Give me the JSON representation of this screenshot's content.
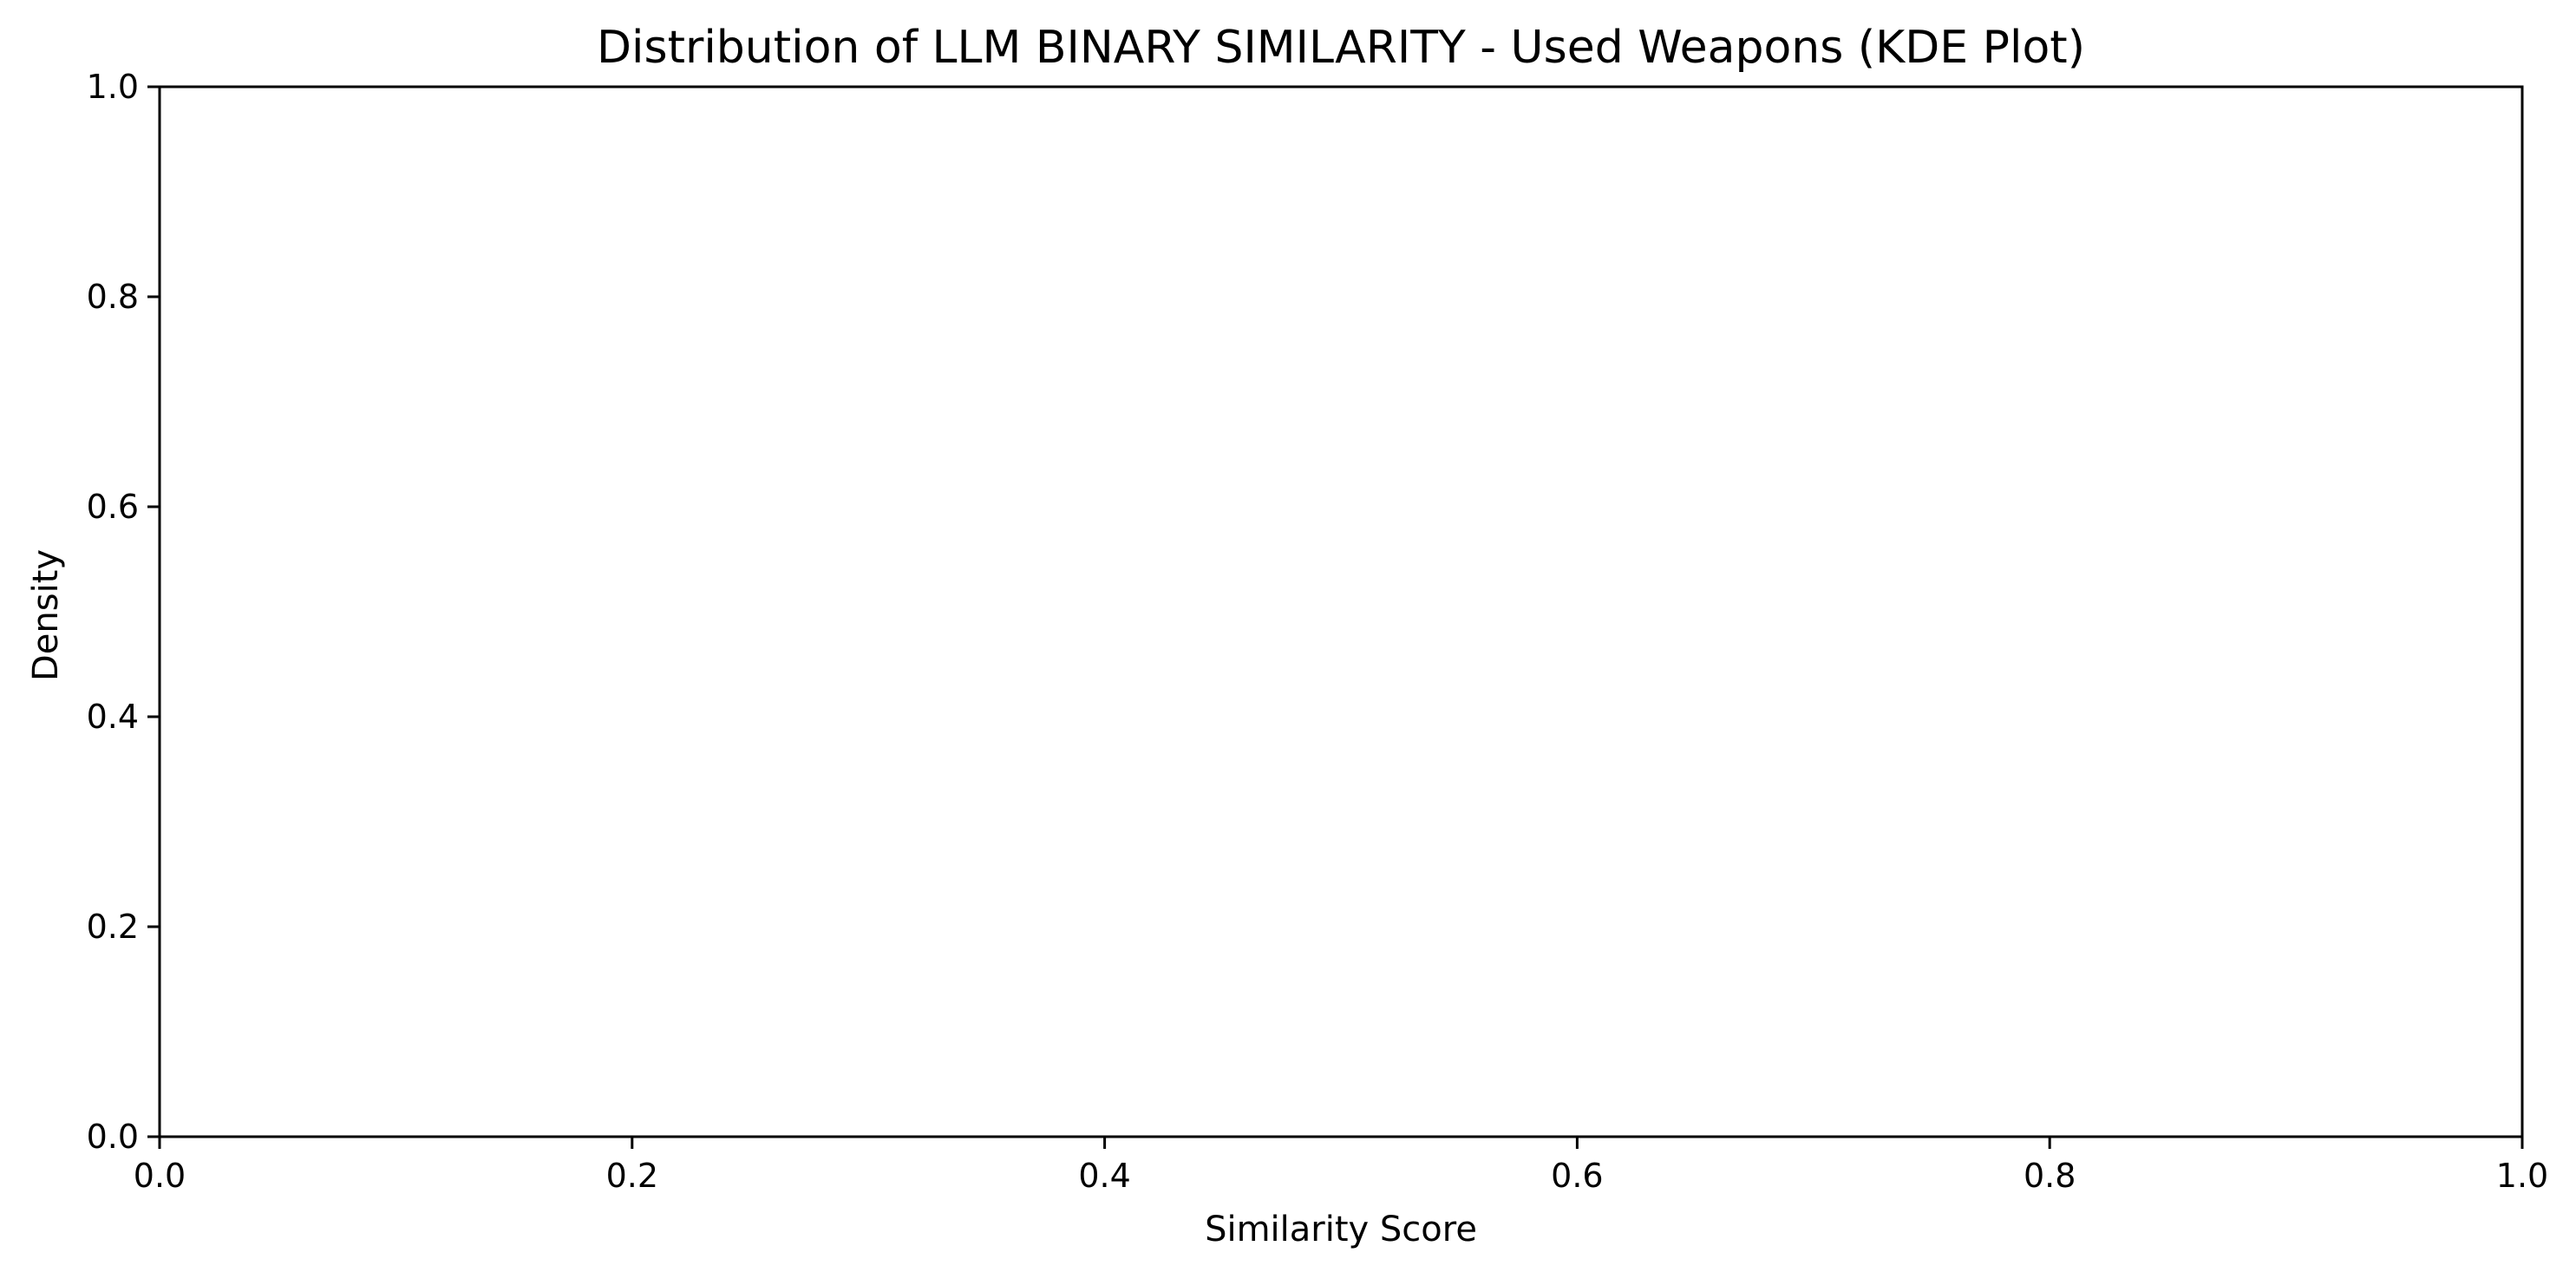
{
  "chart_data": {
    "type": "line",
    "title": "Distribution of LLM BINARY SIMILARITY - Used Weapons (KDE Plot)",
    "xlabel": "Similarity Score",
    "ylabel": "Density",
    "xlim": [
      0.0,
      1.0
    ],
    "ylim": [
      0.0,
      1.0
    ],
    "x_ticks": [
      "0.0",
      "0.2",
      "0.4",
      "0.6",
      "0.8",
      "1.0"
    ],
    "y_ticks": [
      "0.0",
      "0.2",
      "0.4",
      "0.6",
      "0.8",
      "1.0"
    ],
    "series": [],
    "grid": false,
    "legend": "none"
  }
}
